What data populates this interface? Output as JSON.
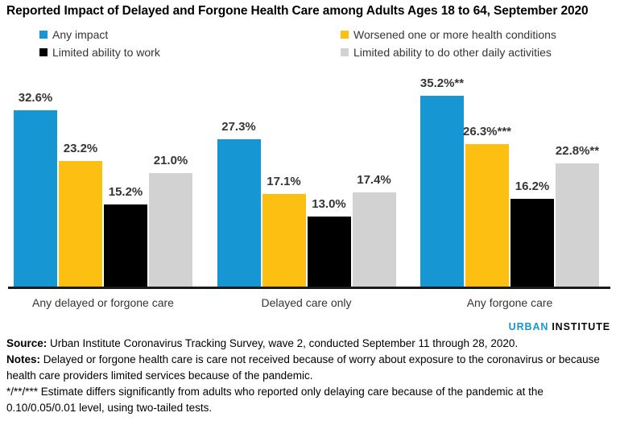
{
  "title": "Reported Impact of Delayed and Forgone Health Care among Adults Ages 18 to 64, September 2020",
  "chart_data": {
    "type": "bar",
    "categories": [
      "Any delayed or forgone care",
      "Delayed care only",
      "Any forgone care"
    ],
    "series": [
      {
        "name": "Any impact",
        "color": "#1696d2",
        "values": [
          32.6,
          27.3,
          35.2
        ],
        "labels": [
          "32.6%",
          "27.3%",
          "35.2%**"
        ]
      },
      {
        "name": "Worsened one or more health conditions",
        "color": "#fdbf11",
        "values": [
          23.2,
          17.1,
          26.3
        ],
        "labels": [
          "23.2%",
          "17.1%",
          "26.3%***"
        ]
      },
      {
        "name": "Limited ability to work",
        "color": "#000000",
        "values": [
          15.2,
          13.0,
          16.2
        ],
        "labels": [
          "15.2%",
          "13.0%",
          "16.2%"
        ]
      },
      {
        "name": "Limited ability to do other daily activities",
        "color": "#d2d2d2",
        "values": [
          21.0,
          17.4,
          22.8
        ],
        "labels": [
          "21.0%",
          "17.4%",
          "22.8%**"
        ]
      }
    ],
    "ylim": [
      0,
      40
    ],
    "grid": false,
    "legend_position": "top, two columns",
    "value_labels_shown": true,
    "yaxis_shown": false
  },
  "logo": {
    "part1": "URBAN",
    "part2": "INSTITUTE"
  },
  "footer": {
    "source_label": "Source:",
    "source_text": " Urban Institute Coronavirus Tracking Survey, wave 2, conducted September 11 through 28, 2020.",
    "notes_label": "Notes:",
    "notes_text": " Delayed or forgone health care is care not received because of worry about exposure to the coronavirus or because health care providers limited services because of the pandemic.",
    "significance_text": "*/**/*** Estimate differs significantly from adults who reported only delaying care because of the pandemic at the 0.10/0.05/0.01 level, using two-tailed tests."
  }
}
